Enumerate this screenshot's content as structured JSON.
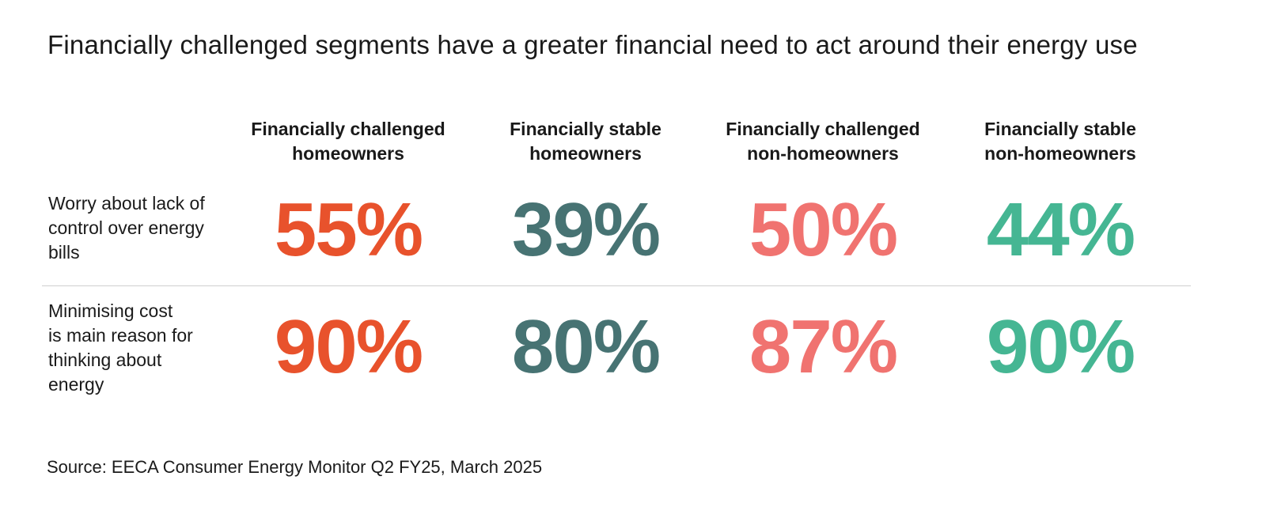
{
  "title": "Financially challenged segments have a greater financial need to act around their energy use",
  "source": "Source: EECA Consumer Energy Monitor Q2 FY25, March 2025",
  "chart_data": {
    "type": "table",
    "columns": [
      {
        "label": "Financially challenged\nhomeowners",
        "color": "#E8522C"
      },
      {
        "label": "Financially stable\nhomeowners",
        "color": "#477373"
      },
      {
        "label": "Financially challenged\nnon-homeowners",
        "color": "#F07370"
      },
      {
        "label": "Financially stable\nnon-homeowners",
        "color": "#45B693"
      }
    ],
    "rows": [
      {
        "label": "Worry about lack of\ncontrol over energy\nbills",
        "values": [
          "55%",
          "39%",
          "50%",
          "44%"
        ]
      },
      {
        "label": "Minimising cost\nis main reason for\nthinking about\nenergy",
        "values": [
          "90%",
          "80%",
          "87%",
          "90%"
        ]
      }
    ]
  }
}
